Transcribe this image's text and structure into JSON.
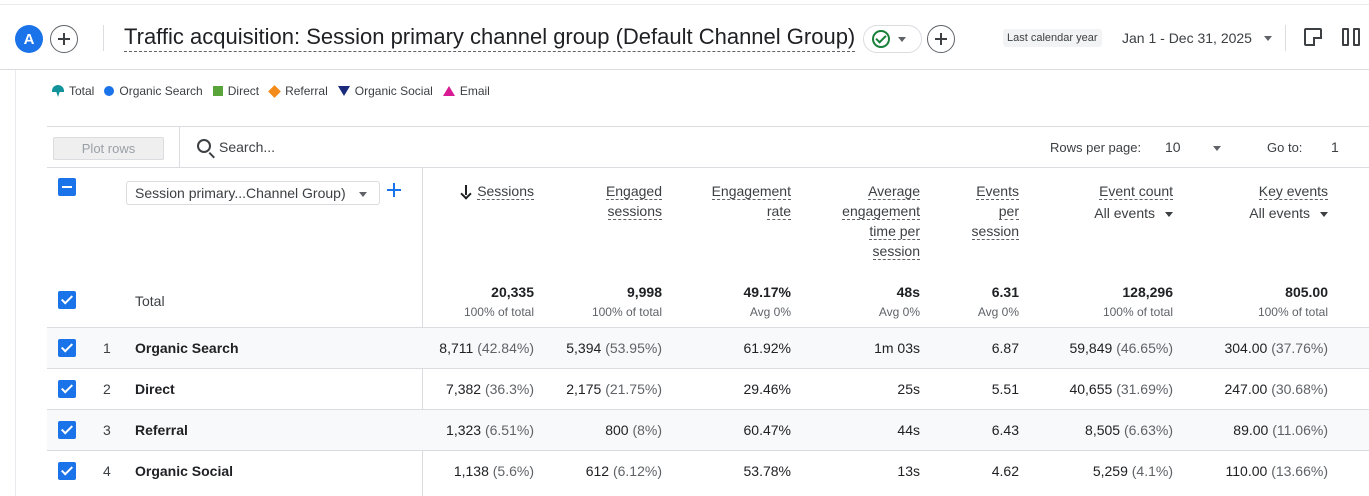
{
  "header": {
    "avatar_letter": "A",
    "title": "Traffic acquisition: Session primary channel group (Default Channel Group)",
    "date_preset": "Last calendar year",
    "date_range": "Jan 1 - Dec 31, 2025"
  },
  "legend": {
    "items": [
      {
        "label": "Total",
        "icon": "teal-pin-icon",
        "color": "#12939a"
      },
      {
        "label": "Organic Search",
        "icon": "circle-icon",
        "color": "#1a73e8"
      },
      {
        "label": "Direct",
        "icon": "square-icon",
        "color": "#5aa53a"
      },
      {
        "label": "Referral",
        "icon": "diamond-icon",
        "color": "#f28b1a"
      },
      {
        "label": "Organic Social",
        "icon": "triangle-down-icon",
        "color": "#1b2a7a"
      },
      {
        "label": "Email",
        "icon": "triangle-up-icon",
        "color": "#d81b92"
      }
    ]
  },
  "toolbar": {
    "plot_rows_label": "Plot rows",
    "search_placeholder": "Search...",
    "rows_per_page_label": "Rows per page:",
    "rows_per_page_value": "10",
    "go_to_label": "Go to:",
    "go_to_value": "1"
  },
  "table": {
    "dimension_label": "Session primary...Channel Group)",
    "columns": [
      {
        "lines": [
          "Sessions"
        ],
        "sorted_desc": true
      },
      {
        "lines": [
          "Engaged",
          "sessions"
        ]
      },
      {
        "lines": [
          "Engagement",
          "rate"
        ]
      },
      {
        "lines": [
          "Average",
          "engagement",
          "time per",
          "session"
        ]
      },
      {
        "lines": [
          "Events",
          "per",
          "session"
        ]
      },
      {
        "lines": [
          "Event count"
        ],
        "sub": "All events"
      },
      {
        "lines": [
          "Key events"
        ],
        "sub": "All events"
      }
    ],
    "totals": {
      "label": "Total",
      "values": [
        "20,335",
        "9,998",
        "49.17%",
        "48s",
        "6.31",
        "128,296",
        "805.00"
      ],
      "subs": [
        "100% of total",
        "100% of total",
        "Avg 0%",
        "Avg 0%",
        "Avg 0%",
        "100% of total",
        "100% of total"
      ]
    },
    "rows": [
      {
        "index": "1",
        "name": "Organic Search",
        "cells": [
          [
            "8,711",
            "(42.84%)"
          ],
          [
            "5,394",
            "(53.95%)"
          ],
          [
            "61.92%",
            ""
          ],
          [
            "1m 03s",
            ""
          ],
          [
            "6.87",
            ""
          ],
          [
            "59,849",
            "(46.65%)"
          ],
          [
            "304.00",
            "(37.76%)"
          ]
        ]
      },
      {
        "index": "2",
        "name": "Direct",
        "cells": [
          [
            "7,382",
            "(36.3%)"
          ],
          [
            "2,175",
            "(21.75%)"
          ],
          [
            "29.46%",
            ""
          ],
          [
            "25s",
            ""
          ],
          [
            "5.51",
            ""
          ],
          [
            "40,655",
            "(31.69%)"
          ],
          [
            "247.00",
            "(30.68%)"
          ]
        ]
      },
      {
        "index": "3",
        "name": "Referral",
        "cells": [
          [
            "1,323",
            "(6.51%)"
          ],
          [
            "800",
            "(8%)"
          ],
          [
            "60.47%",
            ""
          ],
          [
            "44s",
            ""
          ],
          [
            "6.43",
            ""
          ],
          [
            "8,505",
            "(6.63%)"
          ],
          [
            "89.00",
            "(11.06%)"
          ]
        ]
      },
      {
        "index": "4",
        "name": "Organic Social",
        "cells": [
          [
            "1,138",
            "(5.6%)"
          ],
          [
            "612",
            "(6.12%)"
          ],
          [
            "53.78%",
            ""
          ],
          [
            "13s",
            ""
          ],
          [
            "4.62",
            ""
          ],
          [
            "5,259",
            "(4.1%)"
          ],
          [
            "110.00",
            "(13.66%)"
          ]
        ]
      }
    ]
  },
  "colors": {
    "accent": "#1a73e8",
    "success": "#188038"
  }
}
